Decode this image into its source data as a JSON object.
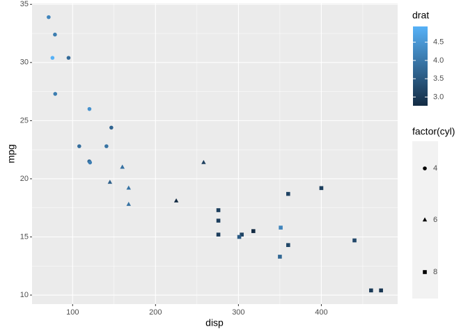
{
  "chart_data": {
    "type": "scatter",
    "x_label": "disp",
    "y_label": "mpg",
    "xlim": [
      51.05,
      492.05
    ],
    "ylim": [
      9.225,
      35.075
    ],
    "xticks": [
      100,
      200,
      300,
      400
    ],
    "yticks": [
      10,
      15,
      20,
      25,
      30,
      35
    ],
    "xminor": [
      150,
      250,
      350,
      450
    ],
    "yminor": [
      12.5,
      17.5,
      22.5,
      27.5,
      32.5
    ],
    "grid": true,
    "color_scale": {
      "name": "drat",
      "low": "#132B43",
      "high": "#56B1F7",
      "limits": [
        2.76,
        4.93
      ],
      "ticks": [
        {
          "value": 3,
          "label": "3.0"
        },
        {
          "value": 3.5,
          "label": "3.5"
        },
        {
          "value": 4,
          "label": "4.0"
        },
        4.5
      ]
    },
    "shape_legend_title": "factor(cyl)",
    "series": [
      {
        "name": "4",
        "shape": "circle",
        "x": [
          108,
          146.7,
          140.8,
          78.7,
          75.7,
          71.1,
          120.1,
          79,
          120.3,
          95.1,
          121
        ],
        "values": [
          22.8,
          24.4,
          22.8,
          32.4,
          30.4,
          33.9,
          21.5,
          27.3,
          26,
          30.4,
          21.4
        ],
        "drat": [
          3.85,
          3.69,
          3.92,
          4.08,
          4.93,
          4.22,
          3.7,
          4.08,
          4.43,
          3.77,
          4.11
        ]
      },
      {
        "name": "6",
        "shape": "triangle",
        "x": [
          160,
          160,
          258,
          225,
          167.6,
          167.6,
          145
        ],
        "values": [
          21,
          21,
          21.4,
          18.1,
          19.2,
          17.8,
          19.7
        ],
        "drat": [
          3.9,
          3.9,
          3.08,
          2.76,
          3.92,
          3.92,
          3.62
        ]
      },
      {
        "name": "8",
        "shape": "square",
        "x": [
          360,
          360,
          275.8,
          275.8,
          275.8,
          472,
          460,
          440,
          318,
          304,
          350,
          400,
          351,
          301
        ],
        "values": [
          18.7,
          14.3,
          16.4,
          17.3,
          15.2,
          10.4,
          10.4,
          14.7,
          15.5,
          15.2,
          13.3,
          19.2,
          15.8,
          15
        ],
        "drat": [
          3.15,
          3.21,
          3.07,
          3.07,
          3.07,
          2.93,
          3,
          3.23,
          2.76,
          3.15,
          3.73,
          3.08,
          4.22,
          3.54
        ]
      }
    ]
  }
}
